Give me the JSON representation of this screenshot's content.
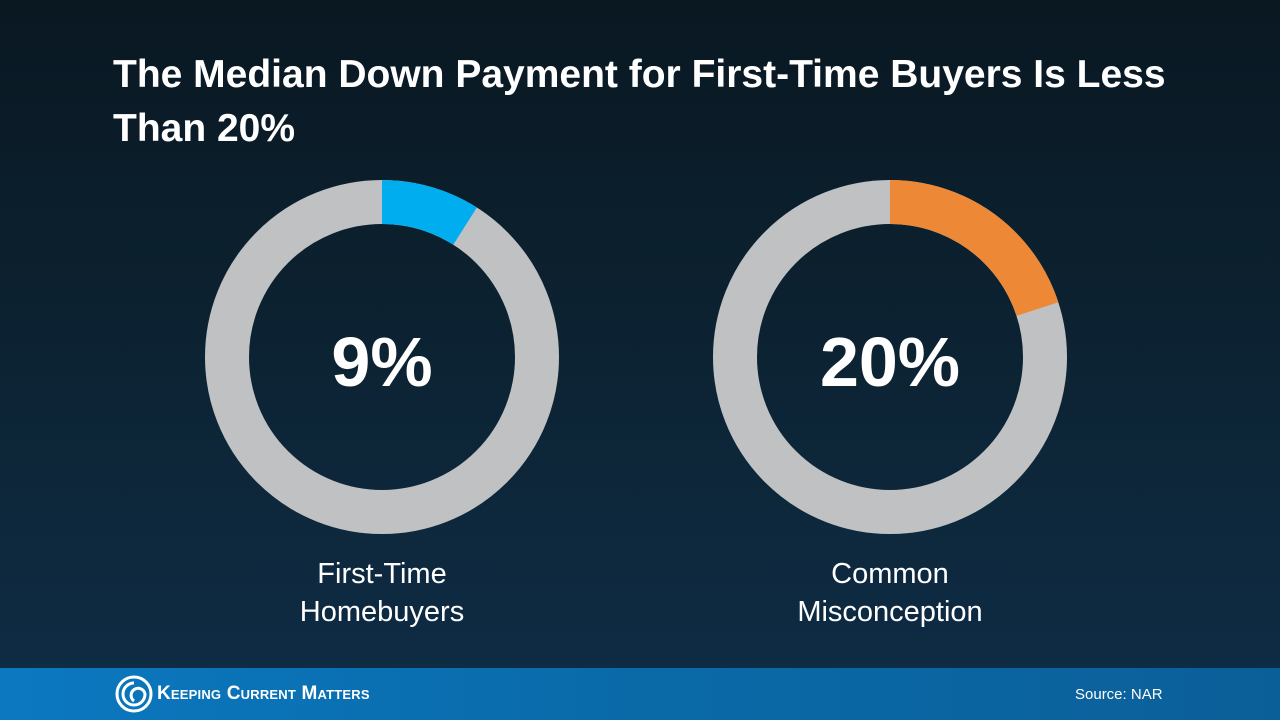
{
  "title": "The Median Down Payment for First-Time Buyers Is Less Than 20%",
  "chart_data": [
    {
      "type": "donut",
      "categories": [
        "First-Time Homebuyers"
      ],
      "values": [
        9
      ],
      "value_labels": [
        "9%"
      ],
      "color": "#00aeef"
    },
    {
      "type": "donut",
      "categories": [
        "Common Misconception"
      ],
      "values": [
        20
      ],
      "value_labels": [
        "20%"
      ],
      "color": "#ed8936"
    }
  ],
  "footer": {
    "logo_text": "Keeping Current Matters",
    "source": "Source: NAR"
  }
}
